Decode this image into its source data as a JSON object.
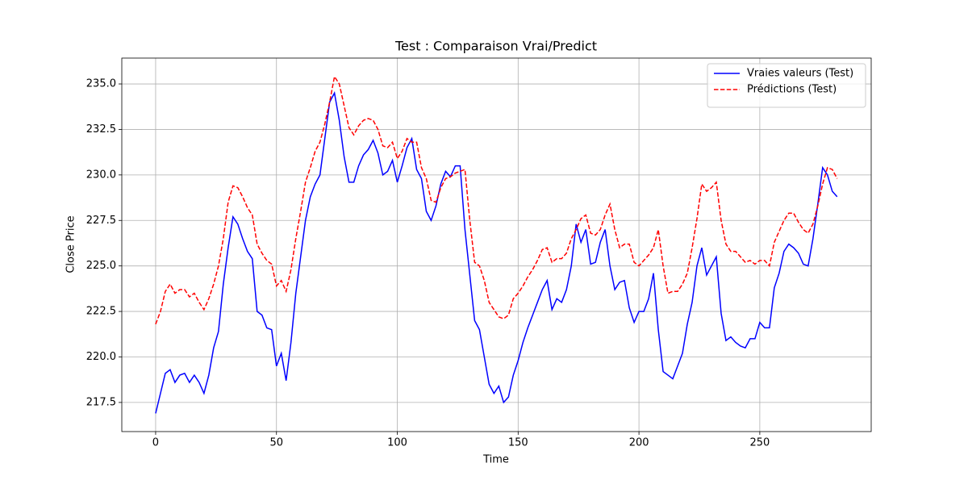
{
  "chart_data": {
    "type": "line",
    "title": "Test : Comparaison Vrai/Predict",
    "x_label": "Time",
    "y_label": "Close Price",
    "x": [
      0,
      2,
      4,
      6,
      8,
      10,
      12,
      14,
      16,
      18,
      20,
      22,
      24,
      26,
      28,
      30,
      32,
      34,
      36,
      38,
      40,
      42,
      44,
      46,
      48,
      50,
      52,
      54,
      56,
      58,
      60,
      62,
      64,
      66,
      68,
      70,
      72,
      74,
      76,
      78,
      80,
      82,
      84,
      86,
      88,
      90,
      92,
      94,
      96,
      98,
      100,
      102,
      104,
      106,
      108,
      110,
      112,
      114,
      116,
      118,
      120,
      122,
      124,
      126,
      128,
      130,
      132,
      134,
      136,
      138,
      140,
      142,
      144,
      146,
      148,
      150,
      152,
      154,
      156,
      158,
      160,
      162,
      164,
      166,
      168,
      170,
      172,
      174,
      176,
      178,
      180,
      182,
      184,
      186,
      188,
      190,
      192,
      194,
      196,
      198,
      200,
      202,
      204,
      206,
      208,
      210,
      212,
      214,
      216,
      218,
      220,
      222,
      224,
      226,
      228,
      230,
      232,
      234,
      236,
      238,
      240,
      242,
      244,
      246,
      248,
      250,
      252,
      254,
      256,
      258,
      260,
      262,
      264,
      266,
      268,
      270,
      272,
      274,
      276,
      278,
      280,
      282
    ],
    "series": [
      {
        "name": "Vraies valeurs (Test)",
        "color": "#0000ff",
        "linestyle": "solid",
        "values": [
          216.9,
          218.0,
          219.1,
          219.3,
          218.6,
          219.0,
          219.1,
          218.6,
          219.0,
          218.6,
          218.0,
          219.0,
          220.5,
          221.4,
          224.0,
          226.0,
          227.7,
          227.3,
          226.5,
          225.8,
          225.4,
          222.5,
          222.3,
          221.6,
          221.5,
          219.5,
          220.2,
          218.7,
          220.8,
          223.5,
          225.5,
          227.5,
          228.8,
          229.5,
          230.0,
          232.0,
          234.0,
          234.5,
          233.0,
          231.0,
          229.6,
          229.6,
          230.5,
          231.1,
          231.4,
          231.9,
          231.2,
          230.0,
          230.2,
          230.8,
          229.6,
          230.5,
          231.5,
          232.0,
          230.3,
          229.8,
          228.0,
          227.5,
          228.3,
          229.5,
          230.2,
          229.9,
          230.5,
          230.5,
          227.0,
          224.5,
          222.0,
          221.5,
          220.0,
          218.5,
          218.0,
          218.4,
          217.5,
          217.8,
          219.0,
          219.8,
          220.8,
          221.6,
          222.3,
          223.0,
          223.7,
          224.2,
          222.6,
          223.2,
          223.0,
          223.7,
          225.0,
          227.3,
          226.3,
          227.0,
          225.1,
          225.2,
          226.3,
          227.0,
          225.0,
          223.7,
          224.1,
          224.2,
          222.7,
          221.9,
          222.5,
          222.5,
          223.2,
          224.6,
          221.5,
          219.2,
          219.0,
          218.8,
          219.5,
          220.2,
          221.8,
          223.0,
          225.0,
          226.0,
          224.5,
          225.0,
          225.5,
          222.4,
          220.9,
          221.1,
          220.8,
          220.6,
          220.5,
          221.0,
          221.0,
          221.9,
          221.6,
          221.6,
          223.8,
          224.6,
          225.8,
          226.2,
          226.0,
          225.7,
          225.1,
          225.0,
          226.5,
          228.4,
          230.4,
          230.0,
          229.1,
          228.8
        ]
      },
      {
        "name": "Prédictions (Test)",
        "color": "#ff0000",
        "linestyle": "dashed",
        "values": [
          221.8,
          222.5,
          223.6,
          224.0,
          223.5,
          223.7,
          223.7,
          223.3,
          223.5,
          223.0,
          222.6,
          223.2,
          224.0,
          225.0,
          226.5,
          228.5,
          229.4,
          229.3,
          228.8,
          228.2,
          227.8,
          226.2,
          225.7,
          225.3,
          225.1,
          223.9,
          224.2,
          223.6,
          224.8,
          226.5,
          228.0,
          229.6,
          230.4,
          231.3,
          231.8,
          232.8,
          234.0,
          235.4,
          235.0,
          233.8,
          232.6,
          232.2,
          232.7,
          233.0,
          233.1,
          233.0,
          232.5,
          231.6,
          231.5,
          231.8,
          230.9,
          231.3,
          232.0,
          231.8,
          231.8,
          230.4,
          229.8,
          228.6,
          228.5,
          229.3,
          229.8,
          229.9,
          230.1,
          230.2,
          230.3,
          227.5,
          225.2,
          225.0,
          224.2,
          223.0,
          222.6,
          222.2,
          222.1,
          222.3,
          223.2,
          223.5,
          223.9,
          224.4,
          224.8,
          225.3,
          225.9,
          226.0,
          225.2,
          225.4,
          225.4,
          225.7,
          226.5,
          227.0,
          227.6,
          227.8,
          226.8,
          226.7,
          227.0,
          227.8,
          228.4,
          227.0,
          226.0,
          226.2,
          226.2,
          225.2,
          225.0,
          225.3,
          225.6,
          226.0,
          227.0,
          225.0,
          223.5,
          223.6,
          223.6,
          224.0,
          224.6,
          226.0,
          227.6,
          229.5,
          229.1,
          229.3,
          229.6,
          227.5,
          226.2,
          225.8,
          225.8,
          225.5,
          225.2,
          225.3,
          225.1,
          225.3,
          225.3,
          225.0,
          226.3,
          226.9,
          227.5,
          227.9,
          227.9,
          227.4,
          227.0,
          226.8,
          227.3,
          228.3,
          229.5,
          230.4,
          230.3,
          229.8
        ]
      }
    ],
    "xlim": [
      -14.0,
      296.1
    ],
    "xticks": [
      0,
      50,
      100,
      150,
      200,
      250
    ],
    "ylim": [
      215.9,
      236.42
    ],
    "yticks": [
      217.5,
      {
        "value": 220.0,
        "label": "220.0"
      },
      222.5,
      {
        "value": 225.0,
        "label": "225.0"
      },
      227.5,
      {
        "value": 230.0,
        "label": "230.0"
      },
      232.5,
      {
        "value": 235.0,
        "label": "235.0"
      }
    ],
    "grid": true,
    "legend": "upper right"
  }
}
